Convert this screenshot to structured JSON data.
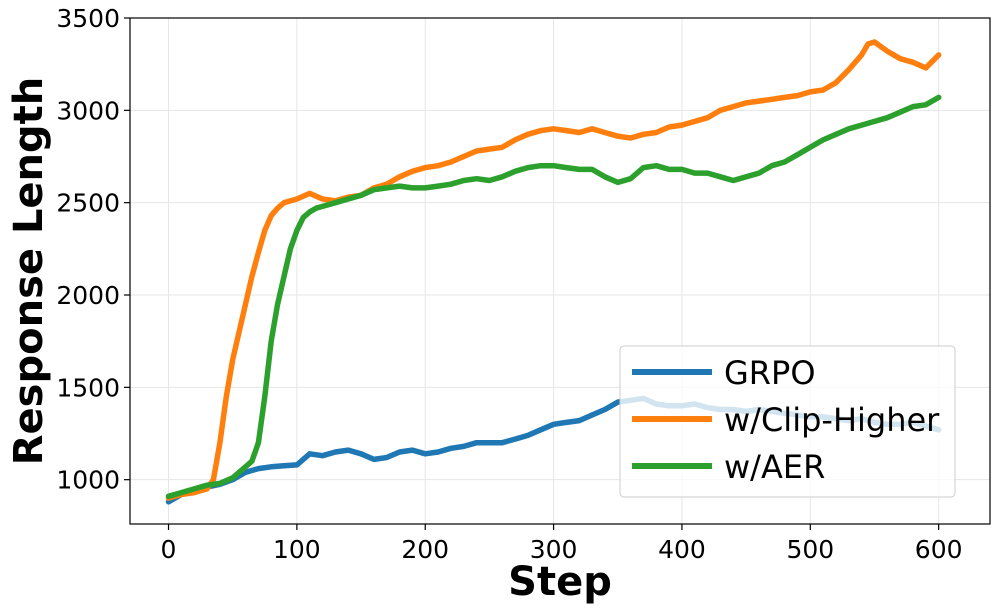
{
  "chart_data": {
    "type": "line",
    "title": "",
    "xlabel": "Step",
    "ylabel": "Response Length",
    "xlim": [
      -30,
      640
    ],
    "ylim": [
      760,
      3500
    ],
    "xticks": [
      0,
      100,
      200,
      300,
      400,
      500,
      600
    ],
    "yticks": [
      1000,
      1500,
      2000,
      2500,
      3000,
      3500
    ],
    "grid": true,
    "legend_position": "lower-right",
    "series": [
      {
        "name": "GRPO",
        "color": "#1f77b4",
        "x": [
          0,
          10,
          20,
          30,
          40,
          50,
          60,
          70,
          80,
          90,
          100,
          110,
          120,
          130,
          140,
          150,
          160,
          170,
          180,
          190,
          200,
          210,
          220,
          230,
          240,
          250,
          260,
          270,
          280,
          290,
          300,
          310,
          320,
          330,
          340,
          350,
          360,
          370,
          380,
          390,
          400,
          410,
          420,
          430,
          440,
          450,
          460,
          470,
          480,
          490,
          500,
          510,
          520,
          530,
          540,
          550,
          560,
          570,
          580,
          590,
          600
        ],
        "y": [
          880,
          920,
          940,
          960,
          975,
          1000,
          1040,
          1060,
          1070,
          1075,
          1080,
          1140,
          1130,
          1150,
          1160,
          1140,
          1110,
          1120,
          1150,
          1160,
          1140,
          1150,
          1170,
          1180,
          1200,
          1200,
          1200,
          1220,
          1240,
          1270,
          1300,
          1310,
          1320,
          1350,
          1380,
          1420,
          1430,
          1440,
          1410,
          1400,
          1400,
          1410,
          1390,
          1380,
          1380,
          1370,
          1380,
          1370,
          1360,
          1350,
          1340,
          1340,
          1330,
          1320,
          1330,
          1310,
          1300,
          1300,
          1310,
          1290,
          1270
        ]
      },
      {
        "name": "w/Clip-Higher",
        "color": "#ff7f0e",
        "x": [
          0,
          10,
          20,
          30,
          35,
          40,
          45,
          50,
          55,
          60,
          65,
          70,
          75,
          80,
          85,
          90,
          100,
          110,
          120,
          130,
          140,
          150,
          160,
          170,
          180,
          190,
          200,
          210,
          220,
          230,
          240,
          250,
          260,
          270,
          280,
          290,
          300,
          310,
          320,
          330,
          340,
          350,
          360,
          370,
          380,
          390,
          400,
          410,
          420,
          430,
          440,
          450,
          460,
          470,
          480,
          490,
          500,
          510,
          520,
          530,
          540,
          545,
          550,
          560,
          570,
          580,
          590,
          600
        ],
        "y": [
          900,
          920,
          930,
          950,
          1000,
          1200,
          1450,
          1650,
          1800,
          1950,
          2100,
          2230,
          2350,
          2430,
          2470,
          2500,
          2520,
          2550,
          2520,
          2510,
          2530,
          2540,
          2580,
          2600,
          2640,
          2670,
          2690,
          2700,
          2720,
          2750,
          2780,
          2790,
          2800,
          2840,
          2870,
          2890,
          2900,
          2890,
          2880,
          2900,
          2880,
          2860,
          2850,
          2870,
          2880,
          2910,
          2920,
          2940,
          2960,
          3000,
          3020,
          3040,
          3050,
          3060,
          3070,
          3080,
          3100,
          3110,
          3150,
          3220,
          3300,
          3360,
          3370,
          3320,
          3280,
          3260,
          3230,
          3300
        ]
      },
      {
        "name": "w/AER",
        "color": "#2ca02c",
        "x": [
          0,
          10,
          20,
          30,
          40,
          50,
          55,
          60,
          65,
          70,
          75,
          80,
          85,
          90,
          95,
          100,
          105,
          110,
          115,
          120,
          130,
          140,
          150,
          160,
          170,
          180,
          190,
          200,
          210,
          220,
          230,
          240,
          250,
          260,
          270,
          280,
          290,
          300,
          310,
          320,
          330,
          340,
          350,
          360,
          370,
          380,
          390,
          400,
          410,
          420,
          430,
          440,
          450,
          460,
          470,
          480,
          490,
          500,
          510,
          520,
          530,
          540,
          550,
          560,
          570,
          580,
          590,
          600
        ],
        "y": [
          910,
          930,
          950,
          970,
          980,
          1010,
          1040,
          1070,
          1100,
          1200,
          1450,
          1750,
          1950,
          2100,
          2250,
          2350,
          2420,
          2450,
          2470,
          2480,
          2500,
          2520,
          2540,
          2570,
          2580,
          2590,
          2580,
          2580,
          2590,
          2600,
          2620,
          2630,
          2620,
          2640,
          2670,
          2690,
          2700,
          2700,
          2690,
          2680,
          2680,
          2640,
          2610,
          2630,
          2690,
          2700,
          2680,
          2680,
          2660,
          2660,
          2640,
          2620,
          2640,
          2660,
          2700,
          2720,
          2760,
          2800,
          2840,
          2870,
          2900,
          2920,
          2940,
          2960,
          2990,
          3020,
          3030,
          3070
        ]
      }
    ]
  }
}
